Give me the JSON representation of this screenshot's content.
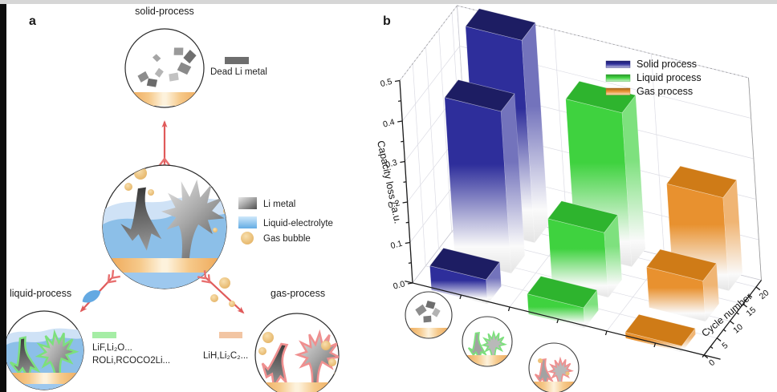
{
  "figure": {
    "panel_a_tag": "a",
    "panel_b_tag": "b"
  },
  "panel_a": {
    "titles": {
      "solid": "solid-process",
      "liquid": "liquid-process",
      "gas": "gas-process"
    },
    "annotations": {
      "dead_li": "Dead Li metal",
      "liquid_products_1": "LiF,Li₂O...",
      "liquid_products_2": "ROLi,RCOCO2Li...",
      "gas_products": "LiH,Li₂C₂..."
    },
    "legend": {
      "li_metal": "Li metal",
      "liquid_electrolyte": "Liquid-electrolyte",
      "gas_bubble": "Gas bubble"
    },
    "colors": {
      "electrode": "#eda24f",
      "electrolyte": "#8cbfe8",
      "li_metal": "#6e6e6e",
      "sei_liquid": "#7ce07c",
      "sei_gas": "#ef8f8f",
      "gas_bubble": "#eec27a",
      "arrow": "#e05a5a",
      "dead_li_swatch": "#6e6e6e",
      "liquid_product_swatch": "#a5eda5",
      "gas_product_swatch": "#f2c5a3"
    }
  },
  "chart_data": {
    "type": "bar",
    "projection": "3d",
    "title": "",
    "zlabel": "Capacity loss / a.u.",
    "ylabel": "Cycle number",
    "zlim": [
      0,
      0.5
    ],
    "z_ticks": [
      0.0,
      0.1,
      0.2,
      0.3,
      0.4,
      0.5
    ],
    "z_minor_ticks": [
      0.05,
      0.15,
      0.25,
      0.35,
      0.45
    ],
    "cycle_ticks": [
      0,
      5,
      10,
      15,
      20
    ],
    "cycle_range": [
      0,
      22
    ],
    "grid": true,
    "legend_position": "upper right",
    "series": [
      {
        "name": "Solid process",
        "color": "#2e2e9b",
        "top_color": "#1d1d63",
        "cycles": [
          2,
          11,
          20
        ],
        "values": [
          0.06,
          0.4,
          0.5
        ]
      },
      {
        "name": "Liquid process",
        "color": "#3fd23f",
        "top_color": "#2eb42e",
        "cycles": [
          2,
          11,
          20
        ],
        "values": [
          0.05,
          0.16,
          0.38
        ]
      },
      {
        "name": "Gas process",
        "color": "#e8912f",
        "top_color": "#cf7b17",
        "cycles": [
          2,
          11,
          20
        ],
        "values": [
          0.015,
          0.1,
          0.23
        ]
      }
    ],
    "row_icons": [
      "solid-process",
      "liquid-process",
      "gas-process"
    ]
  }
}
